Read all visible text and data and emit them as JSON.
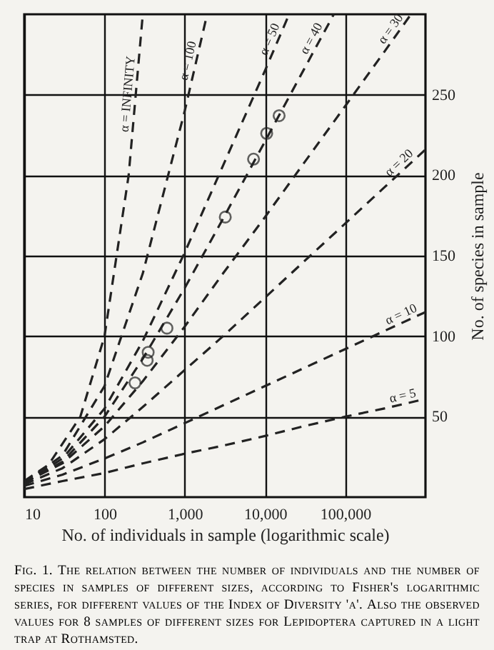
{
  "chart_data": {
    "type": "line",
    "xlabel": "No. of individuals in sample (logarithmic scale)",
    "ylabel": "No. of species in sample",
    "log": "x",
    "xlim": [
      10,
      1000000
    ],
    "ylim": [
      0,
      300
    ],
    "xticks": [
      10,
      100,
      {
        "value": 1000,
        "label": "1,000"
      },
      {
        "value": 10000,
        "label": "10,000"
      },
      {
        "value": 100000,
        "label": "100,000"
      }
    ],
    "yticks": [
      50,
      100,
      150,
      200,
      250
    ],
    "grid": true,
    "line_style": "dashed",
    "marker": "none",
    "series": [
      {
        "name": "α = INFINITY",
        "color": "#222222",
        "x": [
          10,
          20,
          50,
          100,
          200,
          300
        ],
        "values": [
          10,
          20,
          50,
          100,
          200,
          300
        ]
      },
      {
        "name": "α = 100",
        "color": "#222222",
        "x": [
          10,
          30,
          100,
          300,
          1000,
          1900
        ],
        "values": [
          9,
          26,
          69,
          139,
          240,
          300
        ]
      },
      {
        "name": "α = 50",
        "color": "#222222",
        "x": [
          10,
          30,
          100,
          300,
          1000,
          3000,
          10000,
          20000
        ],
        "values": [
          9,
          24,
          55,
          97,
          152,
          206,
          265,
          300
        ]
      },
      {
        "name": "α = 40",
        "color": "#222222",
        "x": [
          10,
          30,
          100,
          300,
          1000,
          3000,
          10000,
          30000,
          72000
        ],
        "values": [
          9,
          22,
          50,
          86,
          130,
          173,
          221,
          265,
          300
        ]
      },
      {
        "name": "α = 30",
        "color": "#222222",
        "x": [
          10,
          30,
          100,
          300,
          1000,
          3000,
          10000,
          30000,
          100000,
          300000,
          660000
        ],
        "values": [
          9,
          21,
          44,
          72,
          106,
          139,
          174,
          207,
          243,
          276,
          300
        ]
      },
      {
        "name": "α = 20",
        "color": "#222222",
        "x": [
          10,
          30,
          100,
          300,
          1000,
          3000,
          10000,
          30000,
          100000,
          300000,
          1000000
        ],
        "values": [
          8,
          18,
          36,
          56,
          79,
          100,
          124,
          146,
          170,
          192,
          216
        ]
      },
      {
        "name": "α = 10",
        "color": "#222222",
        "x": [
          10,
          30,
          100,
          300,
          1000,
          3000,
          10000,
          30000,
          100000,
          300000,
          1000000
        ],
        "values": [
          7,
          14,
          24,
          34,
          46,
          57,
          69,
          80,
          92,
          103,
          115
        ]
      },
      {
        "name": "α = 5",
        "color": "#222222",
        "x": [
          10,
          30,
          100,
          300,
          1000,
          3000,
          10000,
          30000,
          100000,
          300000,
          1000000
        ],
        "values": [
          5,
          10,
          15,
          21,
          27,
          32,
          38,
          44,
          50,
          55,
          61
        ]
      },
      {
        "type": "scatter",
        "marker": "circle",
        "color": "#222222",
        "x": [
          240,
          340,
          350,
          600,
          3200,
          7200,
          10500,
          15000
        ],
        "values": [
          71,
          85,
          90,
          105,
          174,
          210,
          226,
          237
        ]
      }
    ],
    "annotations": [
      "Fig. 1. The relation between the number of individuals and the number of species in samples of different sizes, according to Fisher's logarithmic series, for different values of the Index of Diversity 'α'. Also the observed values for 8 samples of different sizes for Lepidoptera captured in a light trap at Rothamsted."
    ]
  }
}
